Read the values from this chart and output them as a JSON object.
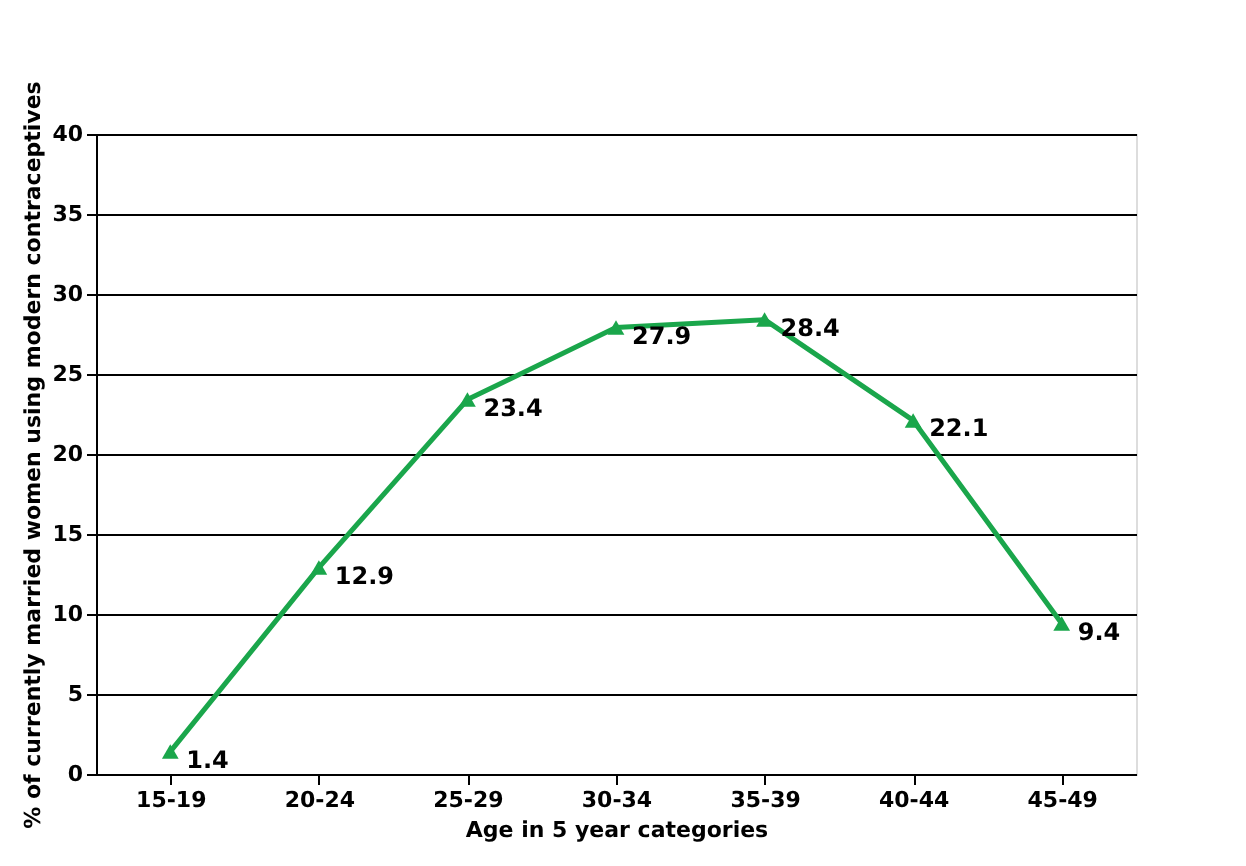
{
  "chart_data": {
    "type": "line",
    "xlabel": "Age in 5 year categories",
    "ylabel": "% of currently married women using modern contraceptives",
    "categories": [
      "15-19",
      "20-24",
      "25-29",
      "30-34",
      "35-39",
      "40-44",
      "45-49"
    ],
    "series": [
      {
        "color": "#1aa64b",
        "values": [
          1.4,
          12.9,
          23.4,
          27.9,
          28.4,
          22.1,
          9.4
        ]
      }
    ],
    "ylim": [
      0,
      40
    ],
    "yticks": [
      0,
      5,
      10,
      15,
      20,
      25,
      30,
      35,
      40
    ],
    "grid": "y",
    "marker": "triangle",
    "line_style": "solid",
    "data_labels": true
  }
}
